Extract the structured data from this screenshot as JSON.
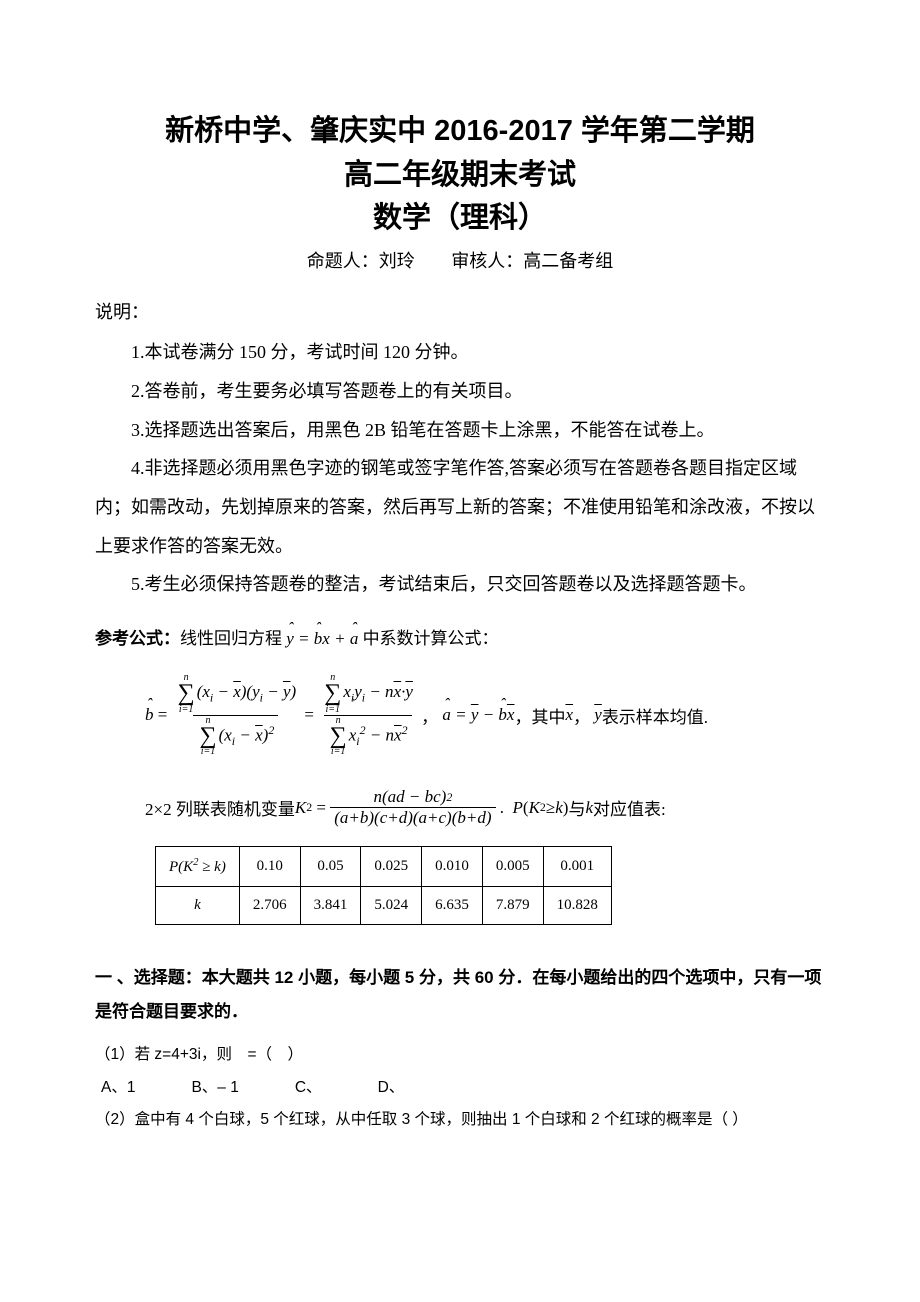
{
  "title": {
    "line1": "新桥中学、肇庆实中 2016-2017 学年第二学期",
    "line2": "高二年级期末考试",
    "line3": "数学（理科）"
  },
  "byline": {
    "author_label": "命题人：刘玲",
    "reviewer_label": "审核人：高二备考组"
  },
  "instructions": {
    "label": "说明：",
    "items": [
      "1.本试卷满分 150 分，考试时间 120 分钟。",
      "2.答卷前，考生要务必填写答题卷上的有关项目。",
      "3.选择题选出答案后，用黑色 2B 铅笔在答题卡上涂黑，不能答在试卷上。",
      "4.非选择题必须用黑色字迹的钢笔或签字笔作答,答案必须写在答题卷各题目指定区域内；如需改动，先划掉原来的答案，然后再写上新的答案；不准使用铅笔和涂改液，不按以上要求作答的答案无效。",
      "5.考生必须保持答题卷的整洁，考试结束后，只交回答题卷以及选择题答题卡。"
    ]
  },
  "formula_intro": {
    "bold": "参考公式：",
    "text_before": "线性回归方程 ",
    "eq": "ŷ = b̂x + â",
    "text_after": " 中系数计算公式："
  },
  "formula1": {
    "b_hat": "b̂",
    "sigma_top": "n",
    "sigma_bot": "i=1",
    "num1": "(xᵢ − x̄)(yᵢ − ȳ)",
    "den1": "(xᵢ − x̄)²",
    "num2": "xᵢyᵢ − nx̄·ȳ",
    "den2": "xᵢ² − nx̄²",
    "a_hat_eq": "â = ȳ − b̂x̄",
    "tail_prefix": "，其中 ",
    "xbar": "x̄",
    "sep": "，",
    "ybar": "ȳ",
    "tail_suffix": " 表示样本均值."
  },
  "formula2": {
    "prefix": "2×2 列联表随机变量 ",
    "K2": "K²",
    "num": "n(ad − bc)²",
    "den": "(a+b)(c+d)(a+c)(b+d)",
    "tail": "P(K² ≥ k) 与 k 对应值表:"
  },
  "table": {
    "header_left": "P(K² ≥ k)",
    "header2_left": "k",
    "p_values": [
      "0.10",
      "0.05",
      "0.025",
      "0.010",
      "0.005",
      "0.001"
    ],
    "k_values": [
      "2.706",
      "3.841",
      "5.024",
      "6.635",
      "7.879",
      "10.828"
    ]
  },
  "section": {
    "heading": "一 、选择题：本大题共 12 小题，每小题 5 分，共 60 分．在每小题给出的四个选项中，只有一项是符合题目要求的．"
  },
  "questions": {
    "q1": {
      "text": "（1）若 z=4+3i，则　=（　）",
      "opts": {
        "a": "A、1",
        "b": "B、– 1",
        "c": "C、",
        "d": "D、"
      }
    },
    "q2": {
      "text": "（2）盒中有 4 个白球，5 个红球，从中任取 3 个球，则抽出 1 个白球和 2 个红球的概率是（    ）"
    }
  },
  "colors": {
    "text": "#000000",
    "background": "#ffffff",
    "border": "#000000"
  }
}
